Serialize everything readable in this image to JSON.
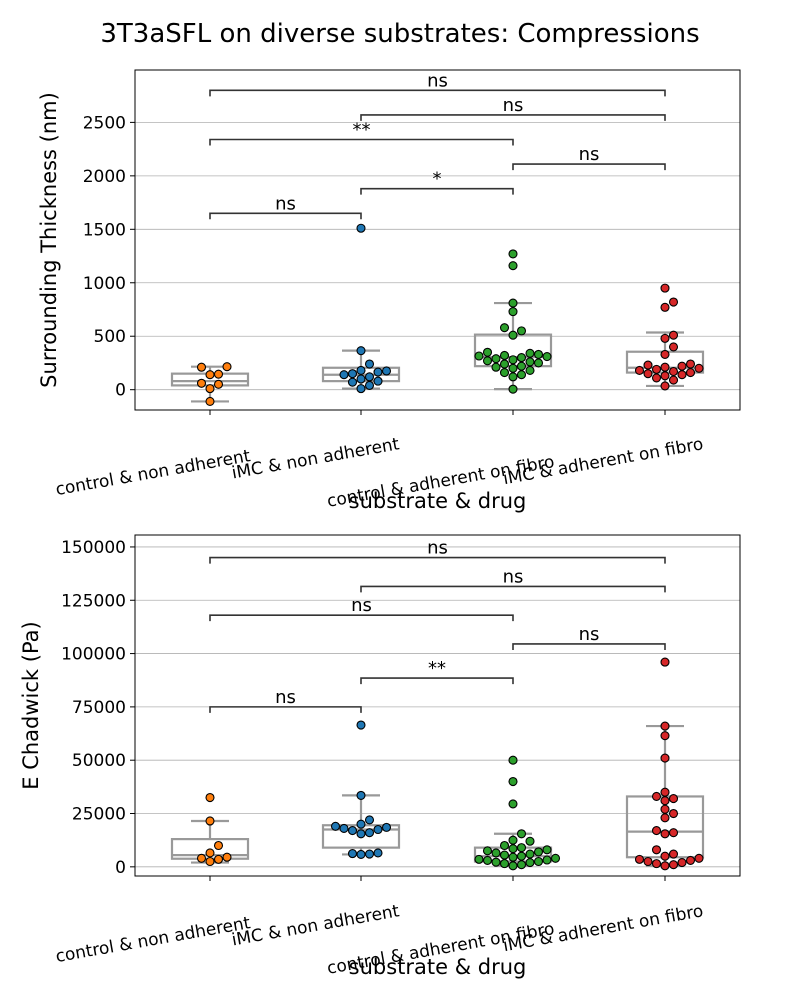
{
  "figure": {
    "title": "3T3aSFL on diverse substrates: Compressions"
  },
  "colors": {
    "control & non adherent": "#ff7f0e",
    "iMC & non adherent": "#1f77b4",
    "control & adherent on fibro": "#2ca02c",
    "iMC & adherent on fibro": "#d62728",
    "box": "#999999",
    "grid": "#b0b0b0",
    "bracket": "#333333"
  },
  "chart_data": [
    {
      "type": "box+swarm",
      "xlabel": "substrate & drug",
      "ylabel": "Surrounding Thickness (nm)",
      "ylim": [
        -190,
        2990
      ],
      "yticks": [
        0,
        500,
        1000,
        1500,
        2000,
        2500
      ],
      "grid": "horizontal",
      "categories": [
        "control & non adherent",
        "iMC & non adherent",
        "control & adherent on fibro",
        "iMC & adherent on fibro"
      ],
      "boxes": [
        {
          "category": "control & non adherent",
          "whislo": -110,
          "q1": 40,
          "med": 80,
          "q3": 150,
          "whishi": 215
        },
        {
          "category": "iMC & non adherent",
          "whislo": 10,
          "q1": 80,
          "med": 140,
          "q3": 205,
          "whishi": 365
        },
        {
          "category": "control & adherent on fibro",
          "whislo": 5,
          "q1": 220,
          "med": 305,
          "q3": 515,
          "whishi": 810
        },
        {
          "category": "iMC & adherent on fibro",
          "whislo": 35,
          "q1": 160,
          "med": 205,
          "q3": 355,
          "whishi": 535
        }
      ],
      "points": [
        {
          "category": "control & non adherent",
          "values": [
            -110,
            10,
            50,
            60,
            140,
            145,
            210,
            215
          ]
        },
        {
          "category": "iMC & non adherent",
          "values": [
            10,
            40,
            70,
            80,
            100,
            120,
            140,
            150,
            165,
            175,
            180,
            240,
            365,
            1510
          ]
        },
        {
          "category": "control & adherent on fibro",
          "values": [
            5,
            120,
            140,
            160,
            180,
            200,
            210,
            220,
            240,
            250,
            260,
            270,
            280,
            290,
            300,
            310,
            315,
            320,
            330,
            340,
            350,
            510,
            550,
            580,
            730,
            810,
            1160,
            1270
          ]
        },
        {
          "category": "iMC & adherent on fibro",
          "values": [
            35,
            90,
            110,
            130,
            140,
            150,
            160,
            170,
            180,
            190,
            200,
            210,
            220,
            230,
            240,
            330,
            400,
            480,
            510,
            770,
            820,
            950
          ]
        }
      ],
      "annotations": [
        {
          "from": "control & non adherent",
          "to": "iMC & non adherent",
          "y": 1650,
          "label": "ns"
        },
        {
          "from": "iMC & non adherent",
          "to": "control & adherent on fibro",
          "y": 1880,
          "label": "*"
        },
        {
          "from": "control & adherent on fibro",
          "to": "iMC & adherent on fibro",
          "y": 2110,
          "label": "ns"
        },
        {
          "from": "control & non adherent",
          "to": "control & adherent on fibro",
          "y": 2340,
          "label": "**"
        },
        {
          "from": "iMC & non adherent",
          "to": "iMC & adherent on fibro",
          "y": 2570,
          "label": "ns"
        },
        {
          "from": "control & non adherent",
          "to": "iMC & adherent on fibro",
          "y": 2800,
          "label": "ns"
        }
      ]
    },
    {
      "type": "box+swarm",
      "xlabel": "substrate & drug",
      "ylabel": "E Chadwick (Pa)",
      "ylim": [
        -4300,
        155600
      ],
      "yticks": [
        0,
        25000,
        50000,
        75000,
        100000,
        125000,
        150000
      ],
      "grid": "horizontal",
      "categories": [
        "control & non adherent",
        "iMC & non adherent",
        "control & adherent on fibro",
        "iMC & adherent on fibro"
      ],
      "boxes": [
        {
          "category": "control & non adherent",
          "whislo": 2000,
          "q1": 3800,
          "med": 5500,
          "q3": 13000,
          "whishi": 21500
        },
        {
          "category": "iMC & non adherent",
          "whislo": 5800,
          "q1": 9000,
          "med": 17500,
          "q3": 19500,
          "whishi": 33500
        },
        {
          "category": "control & adherent on fibro",
          "whislo": 500,
          "q1": 2500,
          "med": 5000,
          "q3": 9000,
          "whishi": 15500
        },
        {
          "category": "iMC & adherent on fibro",
          "whislo": 500,
          "q1": 4500,
          "med": 16500,
          "q3": 33000,
          "whishi": 66000
        }
      ],
      "points": [
        {
          "category": "control & non adherent",
          "values": [
            2500,
            3500,
            4000,
            4500,
            6500,
            10000,
            21500,
            32500
          ]
        },
        {
          "category": "iMC & non adherent",
          "values": [
            5800,
            6000,
            6200,
            6500,
            15500,
            16000,
            17000,
            17500,
            18000,
            18500,
            19000,
            20000,
            22000,
            33500,
            66500
          ]
        },
        {
          "category": "control & adherent on fibro",
          "values": [
            500,
            1000,
            1500,
            2000,
            2200,
            2500,
            3000,
            3200,
            3500,
            4000,
            4500,
            5000,
            5500,
            6000,
            6500,
            7000,
            7500,
            8000,
            8500,
            9000,
            10000,
            12000,
            12500,
            15500,
            29500,
            40000,
            50000
          ]
        },
        {
          "category": "iMC & adherent on fibro",
          "values": [
            500,
            1000,
            1500,
            2000,
            2500,
            3000,
            3500,
            4000,
            5000,
            6000,
            8000,
            15500,
            16000,
            17000,
            23000,
            25000,
            27000,
            31000,
            32000,
            33000,
            35000,
            51000,
            61500,
            66000,
            96000
          ]
        }
      ],
      "annotations": [
        {
          "from": "control & non adherent",
          "to": "iMC & non adherent",
          "y": 75000,
          "label": "ns"
        },
        {
          "from": "iMC & non adherent",
          "to": "control & adherent on fibro",
          "y": 88500,
          "label": "**"
        },
        {
          "from": "control & adherent on fibro",
          "to": "iMC & adherent on fibro",
          "y": 104500,
          "label": "ns"
        },
        {
          "from": "control & non adherent",
          "to": "control & adherent on fibro",
          "y": 118000,
          "label": "ns"
        },
        {
          "from": "iMC & non adherent",
          "to": "iMC & adherent on fibro",
          "y": 131500,
          "label": "ns"
        },
        {
          "from": "control & non adherent",
          "to": "iMC & adherent on fibro",
          "y": 145000,
          "label": "ns"
        }
      ]
    }
  ]
}
